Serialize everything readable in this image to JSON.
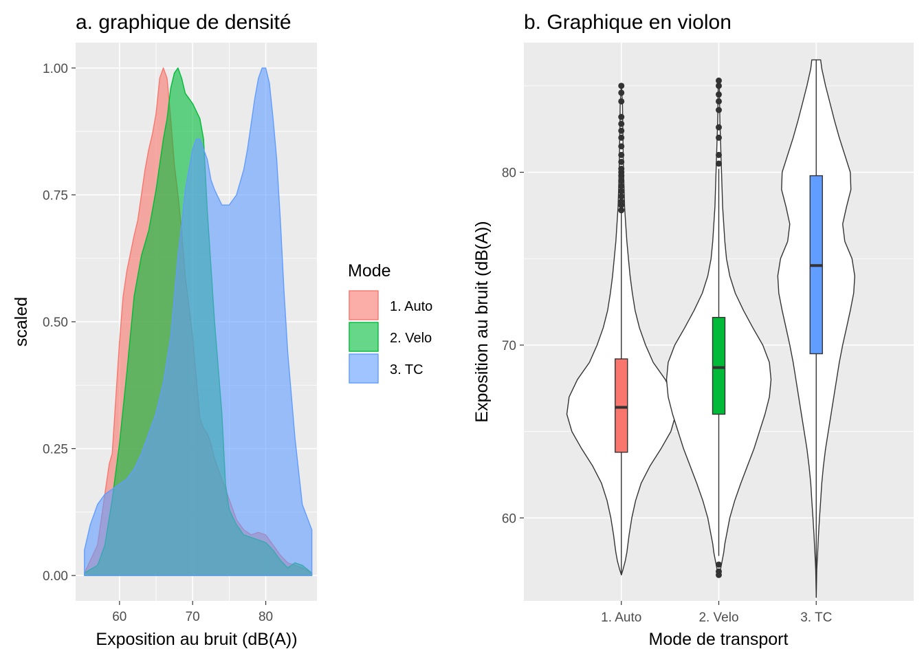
{
  "chart_data": [
    {
      "type": "area",
      "title": "a. graphique de densité",
      "xlabel": "Exposition au bruit (dB(A))",
      "ylabel": "scaled",
      "xlim": [
        54,
        87
      ],
      "ylim": [
        -0.05,
        1.05
      ],
      "xticks": [
        60,
        70,
        80
      ],
      "xtick_labels": [
        "60",
        "70",
        "80"
      ],
      "yticks": [
        0,
        0.25,
        0.5,
        0.75,
        1
      ],
      "ytick_labels": [
        "0.00",
        "0.25",
        "0.50",
        "0.75",
        "1.00"
      ],
      "grid": true,
      "legend": {
        "title": "Mode",
        "position": "right",
        "entries": [
          {
            "label": "1. Auto",
            "color": "#F8766D"
          },
          {
            "label": "2. Velo",
            "color": "#00BA38"
          },
          {
            "label": "3. TC",
            "color": "#619CFF"
          }
        ]
      },
      "series": [
        {
          "name": "1. Auto",
          "color": "#F8766D",
          "x": [
            55.2,
            57,
            58,
            58.6,
            59,
            60,
            60.5,
            61,
            62,
            62.5,
            63,
            63.5,
            64,
            64.5,
            65,
            65.5,
            66,
            66.5,
            67,
            67.5,
            68,
            68.5,
            69,
            70,
            70.5,
            71,
            71.5,
            72,
            72.5,
            73,
            74,
            75,
            76,
            77,
            78,
            79,
            80,
            81,
            82,
            83,
            84,
            85,
            86.3
          ],
          "y": [
            0.005,
            0.06,
            0.16,
            0.22,
            0.24,
            0.46,
            0.55,
            0.6,
            0.67,
            0.7,
            0.75,
            0.8,
            0.84,
            0.87,
            0.91,
            0.98,
            1.0,
            0.98,
            0.9,
            0.81,
            0.75,
            0.68,
            0.59,
            0.47,
            0.39,
            0.31,
            0.29,
            0.28,
            0.26,
            0.23,
            0.19,
            0.15,
            0.11,
            0.09,
            0.08,
            0.085,
            0.08,
            0.06,
            0.04,
            0.025,
            0.02,
            0.015,
            0.005
          ]
        },
        {
          "name": "2. Velo",
          "color": "#00BA38",
          "x": [
            55.2,
            57,
            58,
            59,
            60,
            61,
            62,
            63,
            64,
            65,
            66,
            66.5,
            67,
            67.5,
            68,
            68.5,
            69,
            70,
            71,
            71.5,
            72,
            73,
            74,
            74.5,
            75,
            76,
            77,
            78,
            79,
            80,
            81,
            82,
            83,
            84,
            85,
            86.3
          ],
          "y": [
            0.005,
            0.02,
            0.06,
            0.15,
            0.26,
            0.4,
            0.55,
            0.63,
            0.68,
            0.76,
            0.86,
            0.9,
            0.96,
            0.99,
            1.0,
            0.98,
            0.95,
            0.93,
            0.9,
            0.86,
            0.72,
            0.5,
            0.32,
            0.18,
            0.13,
            0.1,
            0.08,
            0.075,
            0.07,
            0.065,
            0.05,
            0.03,
            0.015,
            0.025,
            0.02,
            0.005
          ]
        },
        {
          "name": "3. TC",
          "color": "#619CFF",
          "x": [
            55.2,
            56,
            57,
            58,
            59,
            60,
            61,
            62,
            63,
            64,
            65,
            66,
            67,
            67.5,
            68,
            68.5,
            69,
            69.5,
            70,
            70.5,
            71,
            71.5,
            72,
            72.5,
            73,
            74,
            75,
            76,
            77,
            77.5,
            78,
            78.5,
            79,
            79.5,
            80,
            80.5,
            81,
            81.5,
            82,
            82.5,
            83,
            84,
            85,
            86.3
          ],
          "y": [
            0.05,
            0.1,
            0.14,
            0.16,
            0.17,
            0.18,
            0.19,
            0.21,
            0.24,
            0.28,
            0.32,
            0.38,
            0.47,
            0.55,
            0.63,
            0.69,
            0.76,
            0.8,
            0.84,
            0.86,
            0.86,
            0.84,
            0.82,
            0.78,
            0.76,
            0.73,
            0.73,
            0.75,
            0.8,
            0.84,
            0.89,
            0.94,
            0.98,
            1.0,
            1.0,
            0.97,
            0.9,
            0.82,
            0.7,
            0.56,
            0.44,
            0.27,
            0.14,
            0.09
          ]
        }
      ]
    },
    {
      "type": "violin",
      "title": "b. Graphique en violon",
      "xlabel": "Mode de transport",
      "ylabel": "Exposition au bruit (dB(A))",
      "categories": [
        "1. Auto",
        "2. Velo",
        "3. TC"
      ],
      "ylim": [
        55.2,
        87.5
      ],
      "yticks": [
        60,
        70,
        80
      ],
      "ytick_labels": [
        "60",
        "70",
        "80"
      ],
      "grid": true,
      "series": [
        {
          "name": "1. Auto",
          "color": "#F8766D",
          "violin_y": [
            56.7,
            57,
            57.5,
            58,
            58.5,
            59,
            60,
            61,
            62,
            63,
            64,
            65,
            66,
            67,
            68,
            69,
            70,
            71,
            72,
            73,
            74,
            75,
            76,
            77,
            78,
            79,
            80,
            81,
            82,
            83,
            84,
            85
          ],
          "violin_width": [
            0,
            0.03,
            0.07,
            0.1,
            0.12,
            0.14,
            0.19,
            0.26,
            0.36,
            0.52,
            0.72,
            0.9,
            0.99,
            0.95,
            0.8,
            0.58,
            0.44,
            0.33,
            0.25,
            0.2,
            0.16,
            0.13,
            0.1,
            0.08,
            0.06,
            0.05,
            0.04,
            0.035,
            0.03,
            0.025,
            0.02,
            0
          ],
          "box": {
            "q1": 63.8,
            "median": 66.4,
            "q3": 69.2,
            "whisker_low": 56.7,
            "whisker_high": 77.7
          },
          "outliers": [
            77.8,
            78.1,
            78.3,
            78.6,
            78.9,
            79.2,
            79.5,
            79.8,
            80.0,
            80.2,
            80.6,
            81.0,
            81.5,
            82.0,
            82.4,
            82.8,
            83.2,
            84.1,
            84.6,
            85.0
          ]
        },
        {
          "name": "2. Velo",
          "color": "#00BA38",
          "violin_y": [
            56.7,
            57,
            57.5,
            58,
            58.5,
            59,
            60,
            61,
            62,
            63,
            64,
            65,
            66,
            67,
            68,
            69,
            70,
            71,
            72,
            73,
            74,
            75,
            76,
            77,
            78,
            79,
            80,
            81,
            82,
            83,
            84,
            85,
            85.3
          ],
          "violin_width": [
            0,
            0.03,
            0.06,
            0.09,
            0.11,
            0.14,
            0.2,
            0.29,
            0.4,
            0.52,
            0.64,
            0.74,
            0.84,
            0.92,
            0.95,
            0.92,
            0.8,
            0.62,
            0.45,
            0.3,
            0.2,
            0.14,
            0.11,
            0.09,
            0.07,
            0.06,
            0.05,
            0.04,
            0.03,
            0.02,
            0.015,
            0.01,
            0
          ],
          "box": {
            "q1": 66.0,
            "median": 68.7,
            "q3": 71.6,
            "whisker_low": 57.8,
            "whisker_high": 80.2
          },
          "outliers": [
            56.7,
            56.9,
            57.3,
            80.5,
            81.0,
            82.0,
            82.6,
            83.6,
            84.1,
            84.5,
            85.0,
            85.3
          ]
        },
        {
          "name": "3. TC",
          "color": "#619CFF",
          "violin_y": [
            55.4,
            57,
            58,
            59,
            60,
            61,
            62,
            63,
            64,
            65,
            66,
            67,
            68,
            69,
            70,
            71,
            72,
            73,
            74,
            75,
            76,
            77,
            78,
            79,
            80,
            81,
            82,
            83,
            84,
            85,
            86,
            86.5
          ],
          "violin_width": [
            0,
            0.01,
            0.025,
            0.04,
            0.06,
            0.08,
            0.1,
            0.13,
            0.17,
            0.22,
            0.27,
            0.32,
            0.37,
            0.42,
            0.48,
            0.55,
            0.62,
            0.68,
            0.7,
            0.65,
            0.52,
            0.48,
            0.55,
            0.63,
            0.62,
            0.52,
            0.42,
            0.33,
            0.25,
            0.17,
            0.1,
            0.08
          ],
          "box": {
            "q1": 69.5,
            "median": 74.6,
            "q3": 79.8,
            "whisker_low": 55.4,
            "whisker_high": 86.5
          },
          "outliers": []
        }
      ]
    }
  ]
}
